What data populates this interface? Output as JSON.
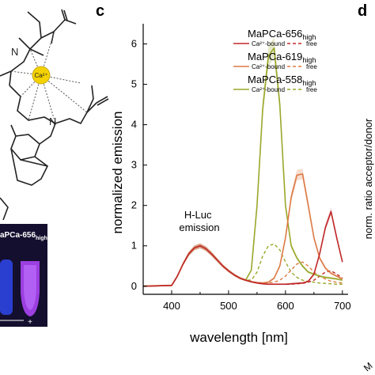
{
  "panels": {
    "c_letter": "c",
    "d_letter": "d",
    "d_ylabel": "norm. ratio acceptor/donor",
    "d_partial_tick": "M"
  },
  "structure": {
    "ion_label": "Ca²⁺",
    "n_label_top": "N",
    "n_label_bottom": "N"
  },
  "photo": {
    "label_main": "aPCa-656",
    "label_sub": "high",
    "plus_sign": "+"
  },
  "colors": {
    "mapca656": "#c0282b",
    "mapca619": "#dd7a45",
    "mapca558": "#9aa82a",
    "hluc": "#8e1f1f"
  },
  "chart_data": {
    "type": "line",
    "xlabel": "wavelength [nm]",
    "ylabel": "normalized emission",
    "xlim": [
      350,
      710
    ],
    "ylim": [
      -0.2,
      6.5
    ],
    "x_ticks": [
      "400",
      "500",
      "600",
      "700"
    ],
    "y_ticks": [
      "0",
      "1",
      "2",
      "3",
      "4",
      "5",
      "6"
    ],
    "annotation": [
      "H-Luc",
      "emission"
    ],
    "legend": {
      "position": "top-right",
      "entries": [
        {
          "name": "MaPCa-656",
          "sub": "high",
          "bound_label": "Ca²⁺-bound",
          "free_label": "free"
        },
        {
          "name": "MaPCa-619",
          "sub": "high",
          "bound_label": "Ca²⁺-bound",
          "free_label": "free"
        },
        {
          "name": "MaPCa-558",
          "sub": "high",
          "bound_label": "Ca²⁺-bound",
          "free_label": "free"
        }
      ]
    },
    "x": [
      350,
      400,
      410,
      420,
      430,
      440,
      450,
      460,
      470,
      480,
      490,
      500,
      510,
      520,
      530,
      540,
      550,
      560,
      570,
      580,
      590,
      600,
      610,
      620,
      630,
      640,
      650,
      660,
      670,
      680,
      690,
      700
    ],
    "series": [
      {
        "name": "MaPCa-656",
        "state": "Ca²⁺-bound",
        "color": "#c0282b",
        "dash": false,
        "values": [
          0,
          0.02,
          0.25,
          0.55,
          0.8,
          0.95,
          1.0,
          0.93,
          0.8,
          0.65,
          0.5,
          0.38,
          0.28,
          0.2,
          0.15,
          0.11,
          0.08,
          0.06,
          0.05,
          0.05,
          0.05,
          0.05,
          0.06,
          0.07,
          0.08,
          0.12,
          0.3,
          0.8,
          1.45,
          1.85,
          1.2,
          0.6
        ]
      },
      {
        "name": "MaPCa-656",
        "state": "free",
        "color": "#c0282b",
        "dash": true,
        "values": [
          0,
          0.02,
          0.25,
          0.55,
          0.8,
          0.95,
          1.0,
          0.93,
          0.8,
          0.65,
          0.5,
          0.38,
          0.28,
          0.2,
          0.15,
          0.11,
          0.08,
          0.06,
          0.05,
          0.05,
          0.05,
          0.05,
          0.05,
          0.06,
          0.07,
          0.1,
          0.15,
          0.25,
          0.35,
          0.38,
          0.3,
          0.2
        ]
      },
      {
        "name": "MaPCa-619",
        "state": "Ca²⁺-bound",
        "color": "#dd7a45",
        "dash": false,
        "values": [
          0,
          0.02,
          0.25,
          0.55,
          0.8,
          0.95,
          1.0,
          0.93,
          0.8,
          0.65,
          0.5,
          0.38,
          0.28,
          0.2,
          0.15,
          0.11,
          0.09,
          0.08,
          0.1,
          0.2,
          0.5,
          1.2,
          2.2,
          2.75,
          2.78,
          2.0,
          1.2,
          0.7,
          0.45,
          0.32,
          0.25,
          0.18
        ]
      },
      {
        "name": "MaPCa-619",
        "state": "free",
        "color": "#dd7a45",
        "dash": true,
        "values": [
          0,
          0.02,
          0.25,
          0.55,
          0.8,
          0.95,
          1.0,
          0.93,
          0.8,
          0.65,
          0.5,
          0.38,
          0.28,
          0.2,
          0.15,
          0.11,
          0.09,
          0.08,
          0.08,
          0.1,
          0.15,
          0.25,
          0.4,
          0.55,
          0.6,
          0.5,
          0.35,
          0.25,
          0.18,
          0.12,
          0.1,
          0.08
        ]
      },
      {
        "name": "MaPCa-558",
        "state": "Ca²⁺-bound",
        "color": "#9aa82a",
        "dash": false,
        "values": [
          0,
          0.02,
          0.25,
          0.55,
          0.8,
          0.95,
          1.0,
          0.93,
          0.8,
          0.65,
          0.5,
          0.38,
          0.28,
          0.2,
          0.15,
          0.4,
          2.0,
          4.4,
          5.7,
          5.9,
          4.5,
          2.0,
          1.0,
          0.7,
          0.5,
          0.35,
          0.3,
          0.25,
          0.22,
          0.2,
          0.18,
          0.15
        ]
      },
      {
        "name": "MaPCa-558",
        "state": "free",
        "color": "#9aa82a",
        "dash": true,
        "values": [
          0,
          0.02,
          0.25,
          0.55,
          0.8,
          0.95,
          1.0,
          0.93,
          0.8,
          0.65,
          0.5,
          0.38,
          0.28,
          0.2,
          0.15,
          0.15,
          0.35,
          0.75,
          1.0,
          1.05,
          0.9,
          0.6,
          0.35,
          0.22,
          0.15,
          0.12,
          0.1,
          0.08,
          0.07,
          0.06,
          0.05,
          0.05
        ]
      }
    ]
  }
}
